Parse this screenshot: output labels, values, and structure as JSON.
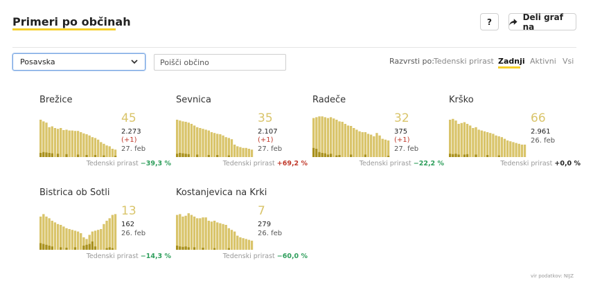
{
  "header": {
    "title": "Primeri po občinah",
    "help_label": "?",
    "share_label": "Deli graf na"
  },
  "controls": {
    "region_select": "Posavska",
    "search_placeholder": "Poišči občino",
    "sort_label": "Razvrsti po:",
    "sort_options": [
      "Tedenski prirast",
      "Zadnji",
      "Aktivni",
      "Vsi"
    ],
    "sort_active": "Zadnji"
  },
  "colors": {
    "bar": "#d9c46a",
    "bar_dark": "#a8901c",
    "accent": "#f5cf2a",
    "negative": "#2e9e5b",
    "positive": "#c0392b",
    "neutral": "#222222"
  },
  "weekly_label": "Tedenski prirast",
  "cards": [
    {
      "name": "Brežice",
      "latest": "45",
      "total": "2.273",
      "delta": "(+1)",
      "date": "27. feb",
      "weekly": "−39,3 %",
      "trend": "down",
      "bars": [
        0.9,
        0.86,
        0.83,
        0.72,
        0.74,
        0.7,
        0.68,
        0.7,
        0.65,
        0.66,
        0.64,
        0.64,
        0.63,
        0.63,
        0.6,
        0.57,
        0.55,
        0.52,
        0.48,
        0.46,
        0.42,
        0.36,
        0.32,
        0.28,
        0.26,
        0.2,
        0.18
      ],
      "dark": [
        0.1,
        0.12,
        0.11,
        0.1,
        0.09,
        0,
        0.08,
        0,
        0,
        0.07,
        0,
        0,
        0,
        0.06,
        0,
        0,
        0.05,
        0,
        0,
        0.05,
        0,
        0,
        0.04,
        0,
        0,
        0,
        0.03
      ]
    },
    {
      "name": "Sevnica",
      "latest": "35",
      "total": "2.107",
      "delta": "(+1)",
      "date": "27. feb",
      "weekly": "+69,2 %",
      "trend": "up",
      "bars": [
        0.9,
        0.88,
        0.86,
        0.85,
        0.83,
        0.8,
        0.76,
        0.72,
        0.7,
        0.68,
        0.66,
        0.64,
        0.6,
        0.58,
        0.56,
        0.55,
        0.52,
        0.48,
        0.46,
        0.43,
        0.3,
        0.26,
        0.24,
        0.22,
        0.22,
        0.2,
        0.18
      ],
      "dark": [
        0.08,
        0.1,
        0.09,
        0.08,
        0.07,
        0,
        0,
        0.06,
        0,
        0,
        0,
        0.05,
        0,
        0,
        0.05,
        0,
        0,
        0,
        0.04,
        0,
        0,
        0,
        0,
        0,
        0,
        0,
        0
      ]
    },
    {
      "name": "Radeče",
      "latest": "32",
      "total": "375",
      "delta": "(+1)",
      "date": "27. feb",
      "weekly": "−22,2 %",
      "trend": "down",
      "bars": [
        0.94,
        0.96,
        0.98,
        0.98,
        0.96,
        0.94,
        0.96,
        0.93,
        0.9,
        0.86,
        0.85,
        0.8,
        0.76,
        0.75,
        0.7,
        0.66,
        0.62,
        0.6,
        0.6,
        0.56,
        0.54,
        0.5,
        0.58,
        0.52,
        0.44,
        0.42,
        0.4
      ],
      "dark": [
        0.22,
        0.2,
        0.12,
        0.1,
        0.09,
        0.06,
        0.08,
        0,
        0.04,
        0.05,
        0,
        0,
        0,
        0.06,
        0,
        0,
        0,
        0,
        0.06,
        0,
        0,
        0,
        0,
        0,
        0,
        0,
        0.03
      ]
    },
    {
      "name": "Krško",
      "latest": "66",
      "total": "2.961",
      "delta": "",
      "date": "26. feb",
      "weekly": "+0,0 %",
      "trend": "neutral",
      "bars": [
        0.9,
        0.92,
        0.88,
        0.8,
        0.82,
        0.84,
        0.8,
        0.76,
        0.7,
        0.72,
        0.66,
        0.64,
        0.62,
        0.6,
        0.58,
        0.56,
        0.52,
        0.5,
        0.48,
        0.44,
        0.4,
        0.38,
        0.36,
        0.34,
        0.32,
        0.3,
        0.3
      ],
      "dark": [
        0.08,
        0.07,
        0.08,
        0.06,
        0,
        0.06,
        0.07,
        0,
        0,
        0.06,
        0,
        0,
        0,
        0.05,
        0,
        0,
        0,
        0.04,
        0,
        0,
        0,
        0,
        0,
        0,
        0,
        0,
        0
      ]
    },
    {
      "name": "Bistrica ob Sotli",
      "latest": "13",
      "total": "162",
      "delta": "",
      "date": "26. feb",
      "weekly": "−14,3 %",
      "trend": "down",
      "bars": [
        0.8,
        0.86,
        0.8,
        0.76,
        0.7,
        0.66,
        0.62,
        0.6,
        0.56,
        0.52,
        0.5,
        0.48,
        0.46,
        0.44,
        0.4,
        0.3,
        0.26,
        0.36,
        0.44,
        0.46,
        0.48,
        0.5,
        0.62,
        0.7,
        0.76,
        0.84,
        0.86
      ],
      "dark": [
        0.16,
        0.14,
        0.12,
        0.1,
        0.08,
        0,
        0,
        0.06,
        0,
        0.05,
        0,
        0,
        0.06,
        0,
        0,
        0.1,
        0.12,
        0.14,
        0.2,
        0.08,
        0,
        0,
        0,
        0.04,
        0.06,
        0.04,
        0
      ]
    },
    {
      "name": "Kostanjevica na Krki",
      "latest": "7",
      "total": "279",
      "delta": "",
      "date": "26. feb",
      "weekly": "−60,0 %",
      "trend": "down",
      "bars": [
        0.84,
        0.86,
        0.8,
        0.82,
        0.88,
        0.84,
        0.8,
        0.76,
        0.76,
        0.78,
        0.78,
        0.7,
        0.68,
        0.7,
        0.66,
        0.64,
        0.62,
        0.6,
        0.52,
        0.48,
        0.44,
        0.34,
        0.3,
        0.28,
        0.26,
        0.24,
        0.22
      ],
      "dark": [
        0.1,
        0.08,
        0.07,
        0.08,
        0.06,
        0,
        0.06,
        0,
        0,
        0.05,
        0,
        0,
        0,
        0.04,
        0,
        0,
        0,
        0,
        0.04,
        0,
        0,
        0,
        0,
        0,
        0,
        0,
        0
      ]
    }
  ],
  "footer": "vir podatkov: NIJZ"
}
